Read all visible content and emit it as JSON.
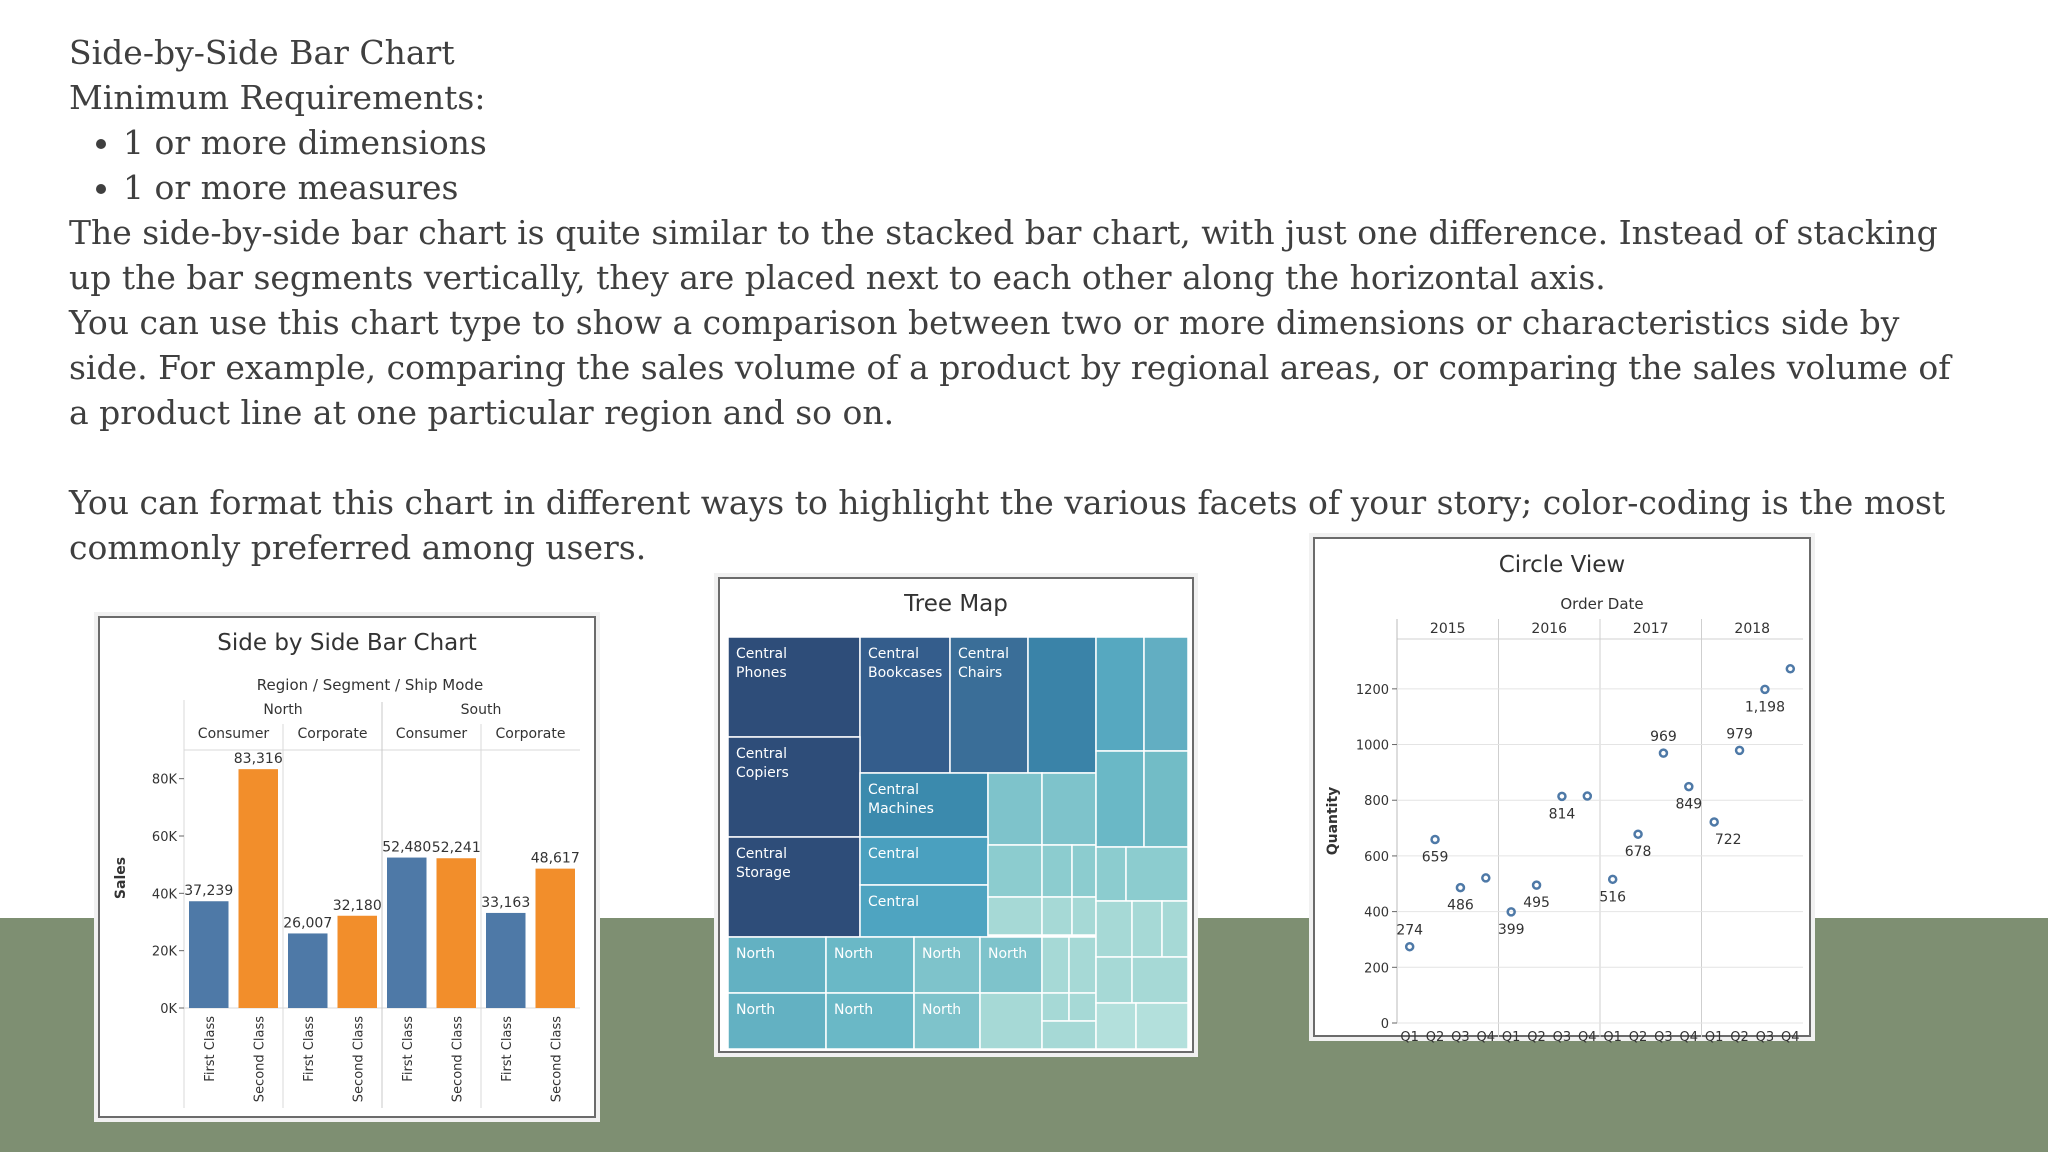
{
  "article": {
    "heading": "Side-by-Side Bar Chart",
    "min_req": "Minimum Requirements:",
    "bullets": [
      "1 or more dimensions",
      "1 or more measures"
    ],
    "para1": "The side-by-side bar chart is quite similar to the stacked bar chart, with just one difference. Instead of stacking up the bar segments vertically, they are placed next to each other along the horizontal axis.",
    "para2": "You can use this chart type to show a comparison between two or more dimensions or characteristics side by side. For example, comparing the sales volume of a product by regional areas, or comparing the sales volume of a product line at one particular region and so on.",
    "para3": "You can format this chart in different ways to highlight the various facets of your story; color-coding is the most commonly preferred among users."
  },
  "colors": {
    "band": "#7e8f72",
    "text": "#3f3f3f",
    "blue": "#4e79a7",
    "orange": "#f28e2b",
    "circle": "#4e79a7"
  },
  "chart_data": [
    {
      "type": "bar",
      "title": "Side by Side Bar Chart",
      "header": "Region / Segment / Ship Mode",
      "ylabel": "Sales",
      "ylim": [
        0,
        90000
      ],
      "yticks": [
        0,
        20000,
        40000,
        60000,
        80000
      ],
      "ytick_labels": [
        "0K",
        "20K",
        "40K",
        "60K",
        "80K"
      ],
      "regions": [
        "North",
        "South"
      ],
      "segments": [
        "Consumer",
        "Corporate",
        "Consumer",
        "Corporate"
      ],
      "categories": [
        "First Class",
        "Second Class",
        "First Class",
        "Second Class",
        "First Class",
        "Second Class",
        "First Class",
        "Second Class"
      ],
      "values": [
        37239,
        83316,
        26007,
        32180,
        52480,
        52241,
        33163,
        48617
      ],
      "labels": [
        "37,239",
        "83,316",
        "26,007",
        "32,180",
        "52,480",
        "52,241",
        "33,163",
        "48,617"
      ]
    },
    {
      "type": "treemap",
      "title": "Tree Map",
      "cell_labels": [
        "Central Phones",
        "Central Bookcases",
        "Central Chairs",
        "Central Copiers",
        "Central Machines",
        "Central Storage",
        "Central",
        "Central",
        "North",
        "North",
        "North",
        "North",
        "North",
        "North",
        "North"
      ]
    },
    {
      "type": "scatter",
      "title": "Circle View",
      "header": "Order Date",
      "ylabel": "Quantity",
      "years": [
        "2015",
        "2016",
        "2017",
        "2018"
      ],
      "quarters": [
        "Q1",
        "Q2",
        "Q3",
        "Q4"
      ],
      "ylim": [
        0,
        1300
      ],
      "yticks": [
        0,
        200,
        400,
        600,
        800,
        1000,
        1200
      ],
      "values": [
        274,
        659,
        486,
        521,
        399,
        495,
        814,
        815,
        516,
        678,
        969,
        849,
        722,
        979,
        1198,
        1272
      ],
      "labels": [
        "274",
        "659",
        "486",
        "",
        "399",
        "495",
        "814",
        "",
        "516",
        "678",
        "969",
        "849",
        "722",
        "979",
        "1,198",
        ""
      ]
    }
  ]
}
